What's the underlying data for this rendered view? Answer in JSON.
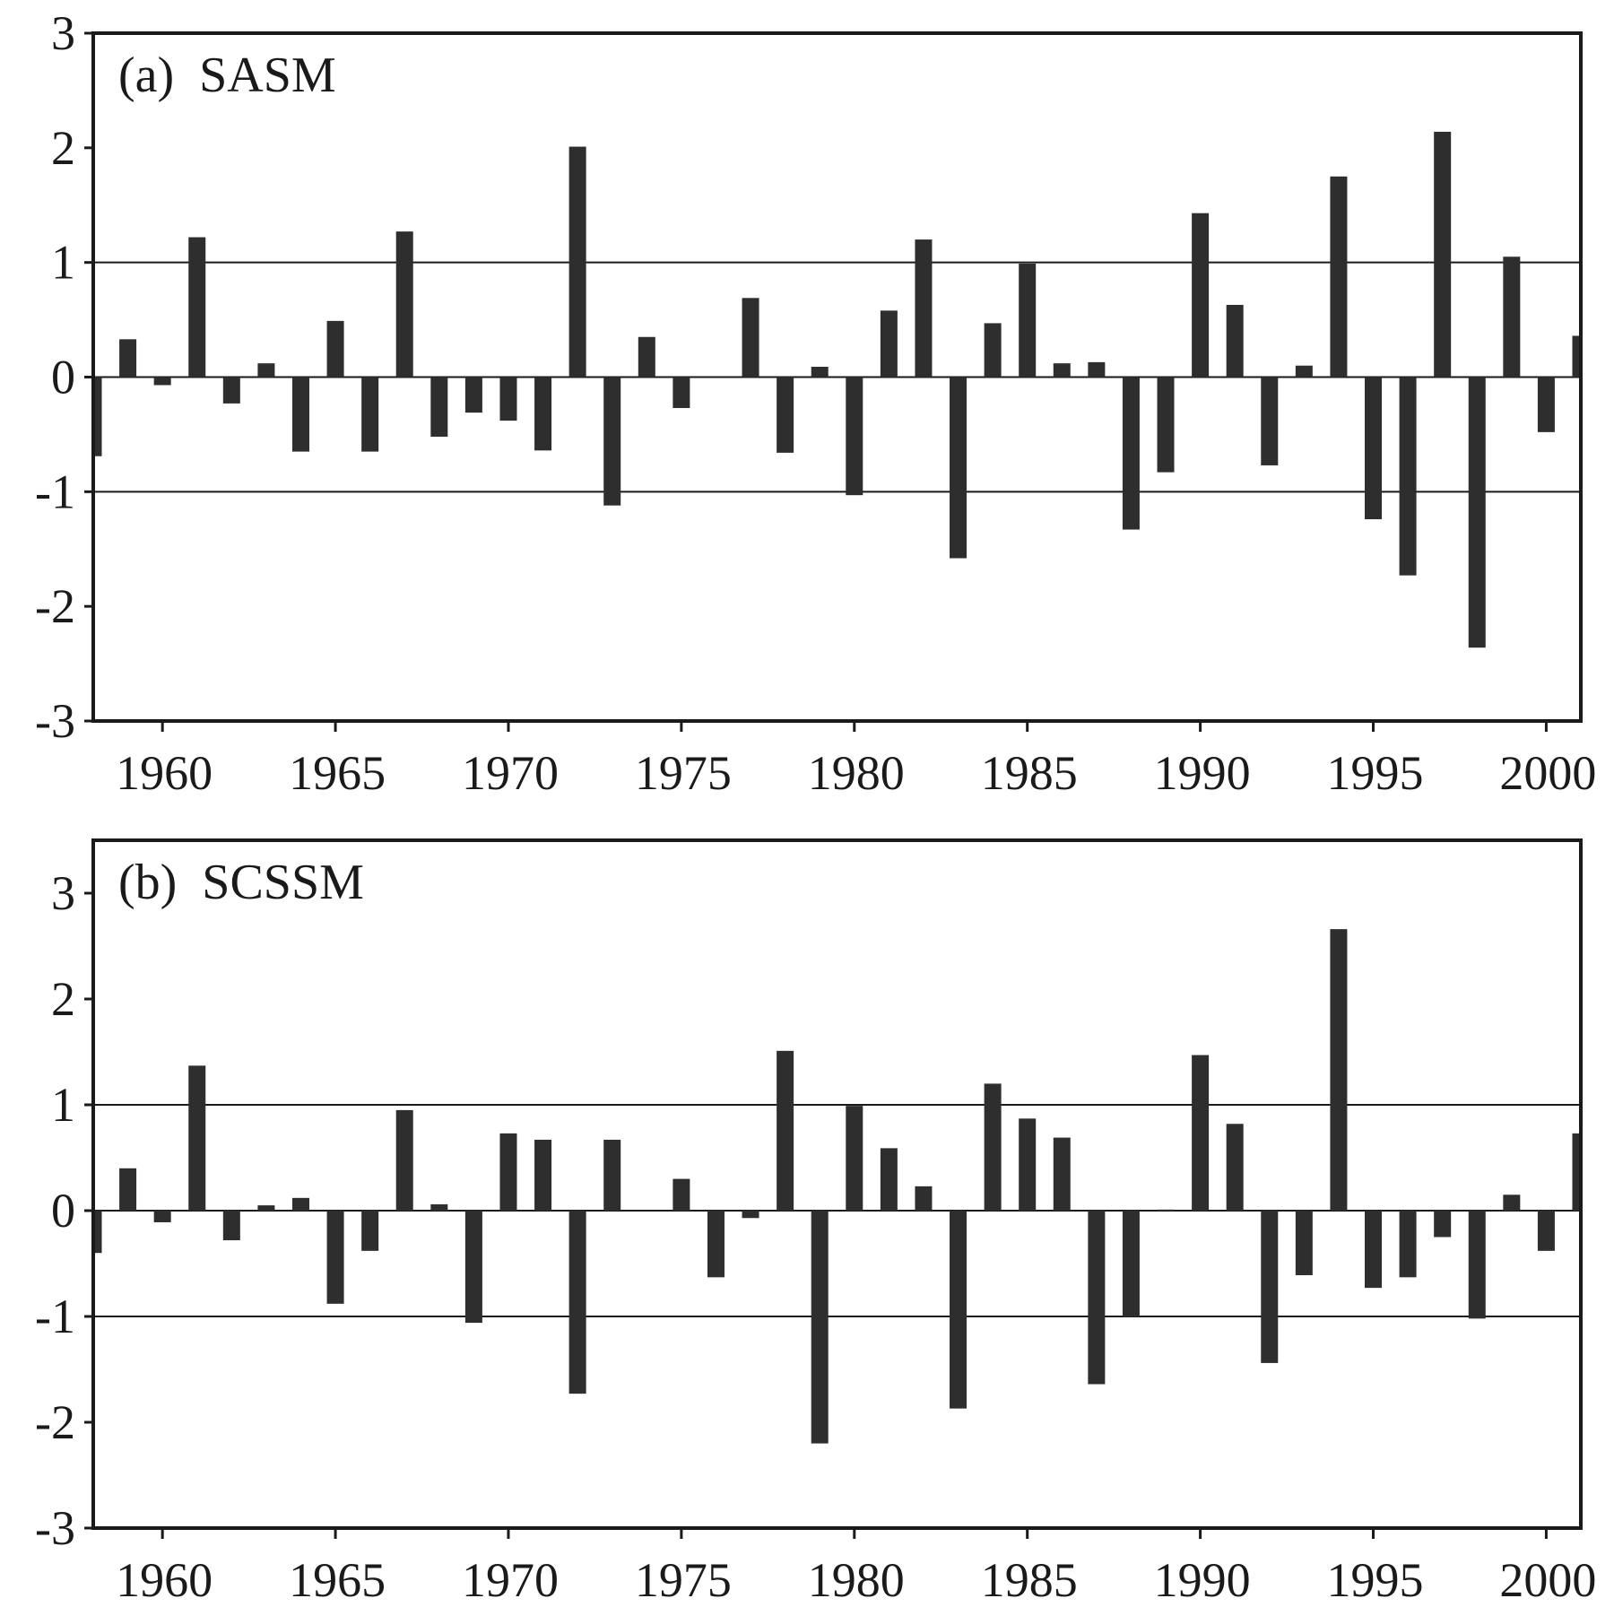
{
  "chart_data": [
    {
      "type": "bar",
      "title": "(a)  SASM",
      "xlabel": "",
      "ylabel": "",
      "ylim": [
        -3,
        3
      ],
      "xlim": [
        1958,
        2001
      ],
      "xticks": [
        1960,
        1965,
        1970,
        1975,
        1980,
        1985,
        1990,
        1995,
        2000
      ],
      "yticks": [
        -3,
        -2,
        -1,
        0,
        1,
        2,
        3
      ],
      "reference_lines": [
        -1,
        0,
        1
      ],
      "bar_color": "#2e2e2e",
      "x": [
        1958,
        1959,
        1960,
        1961,
        1962,
        1963,
        1964,
        1965,
        1966,
        1967,
        1968,
        1969,
        1970,
        1971,
        1972,
        1973,
        1974,
        1975,
        1976,
        1977,
        1978,
        1979,
        1980,
        1981,
        1982,
        1983,
        1984,
        1985,
        1986,
        1987,
        1988,
        1989,
        1990,
        1991,
        1992,
        1993,
        1994,
        1995,
        1996,
        1997,
        1998,
        1999,
        2000,
        2001
      ],
      "values": [
        -0.69,
        0.33,
        -0.07,
        1.22,
        -0.23,
        0.12,
        -0.65,
        0.49,
        -0.65,
        1.27,
        -0.52,
        -0.31,
        -0.38,
        -0.64,
        2.01,
        -1.12,
        0.35,
        -0.27,
        0.0,
        0.69,
        -0.66,
        0.09,
        -1.03,
        0.58,
        1.2,
        -1.58,
        0.47,
        0.99,
        0.12,
        0.13,
        -1.33,
        -0.83,
        1.43,
        0.63,
        -0.77,
        0.1,
        1.75,
        -1.24,
        -1.73,
        2.14,
        -2.36,
        1.05,
        -0.48,
        0.36
      ]
    },
    {
      "type": "bar",
      "title": "(b)  SCSSM",
      "xlabel": "",
      "ylabel": "",
      "ylim": [
        -3,
        3.5
      ],
      "xlim": [
        1958,
        2001
      ],
      "xticks": [
        1960,
        1965,
        1970,
        1975,
        1980,
        1985,
        1990,
        1995,
        2000
      ],
      "yticks": [
        -3,
        -2,
        -1,
        0,
        1,
        2,
        3
      ],
      "reference_lines": [
        -1,
        0,
        1
      ],
      "bar_color": "#2e2e2e",
      "x": [
        1958,
        1959,
        1960,
        1961,
        1962,
        1963,
        1964,
        1965,
        1966,
        1967,
        1968,
        1969,
        1970,
        1971,
        1972,
        1973,
        1974,
        1975,
        1976,
        1977,
        1978,
        1979,
        1980,
        1981,
        1982,
        1983,
        1984,
        1985,
        1986,
        1987,
        1988,
        1989,
        1990,
        1991,
        1992,
        1993,
        1994,
        1995,
        1996,
        1997,
        1998,
        1999,
        2000,
        2001
      ],
      "values": [
        -0.4,
        0.4,
        -0.11,
        1.37,
        -0.28,
        0.05,
        0.12,
        -0.88,
        -0.38,
        0.95,
        0.06,
        -1.06,
        0.73,
        0.67,
        -1.73,
        0.67,
        0.0,
        0.3,
        -0.63,
        -0.07,
        1.51,
        -2.2,
        0.99,
        0.59,
        0.23,
        -1.87,
        1.2,
        0.87,
        0.69,
        -1.64,
        -1.0,
        0.01,
        1.47,
        0.82,
        -1.44,
        -0.61,
        2.66,
        -0.73,
        -0.63,
        -0.25,
        -1.02,
        0.15,
        -0.38,
        0.73
      ]
    }
  ]
}
